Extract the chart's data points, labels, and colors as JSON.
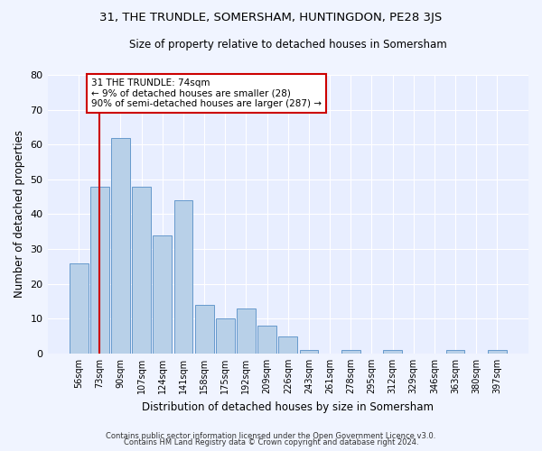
{
  "title": "31, THE TRUNDLE, SOMERSHAM, HUNTINGDON, PE28 3JS",
  "subtitle": "Size of property relative to detached houses in Somersham",
  "xlabel": "Distribution of detached houses by size in Somersham",
  "ylabel": "Number of detached properties",
  "categories": [
    "56sqm",
    "73sqm",
    "90sqm",
    "107sqm",
    "124sqm",
    "141sqm",
    "158sqm",
    "175sqm",
    "192sqm",
    "209sqm",
    "226sqm",
    "243sqm",
    "261sqm",
    "278sqm",
    "295sqm",
    "312sqm",
    "329sqm",
    "346sqm",
    "363sqm",
    "380sqm",
    "397sqm"
  ],
  "values": [
    26,
    48,
    62,
    48,
    34,
    44,
    14,
    10,
    13,
    8,
    5,
    1,
    0,
    1,
    0,
    1,
    0,
    0,
    1,
    0,
    1
  ],
  "bar_color": "#b8d0e8",
  "bar_edge_color": "#6699cc",
  "background_color": "#e8eeff",
  "grid_color": "#ffffff",
  "property_line_x": 1,
  "annotation_text": "31 THE TRUNDLE: 74sqm\n← 9% of detached houses are smaller (28)\n90% of semi-detached houses are larger (287) →",
  "annotation_box_color": "#ffffff",
  "annotation_box_edge": "#cc0000",
  "property_line_color": "#cc0000",
  "ylim": [
    0,
    80
  ],
  "yticks": [
    0,
    10,
    20,
    30,
    40,
    50,
    60,
    70,
    80
  ],
  "footer_line1": "Contains HM Land Registry data © Crown copyright and database right 2024.",
  "footer_line2": "Contains public sector information licensed under the Open Government Licence v3.0."
}
